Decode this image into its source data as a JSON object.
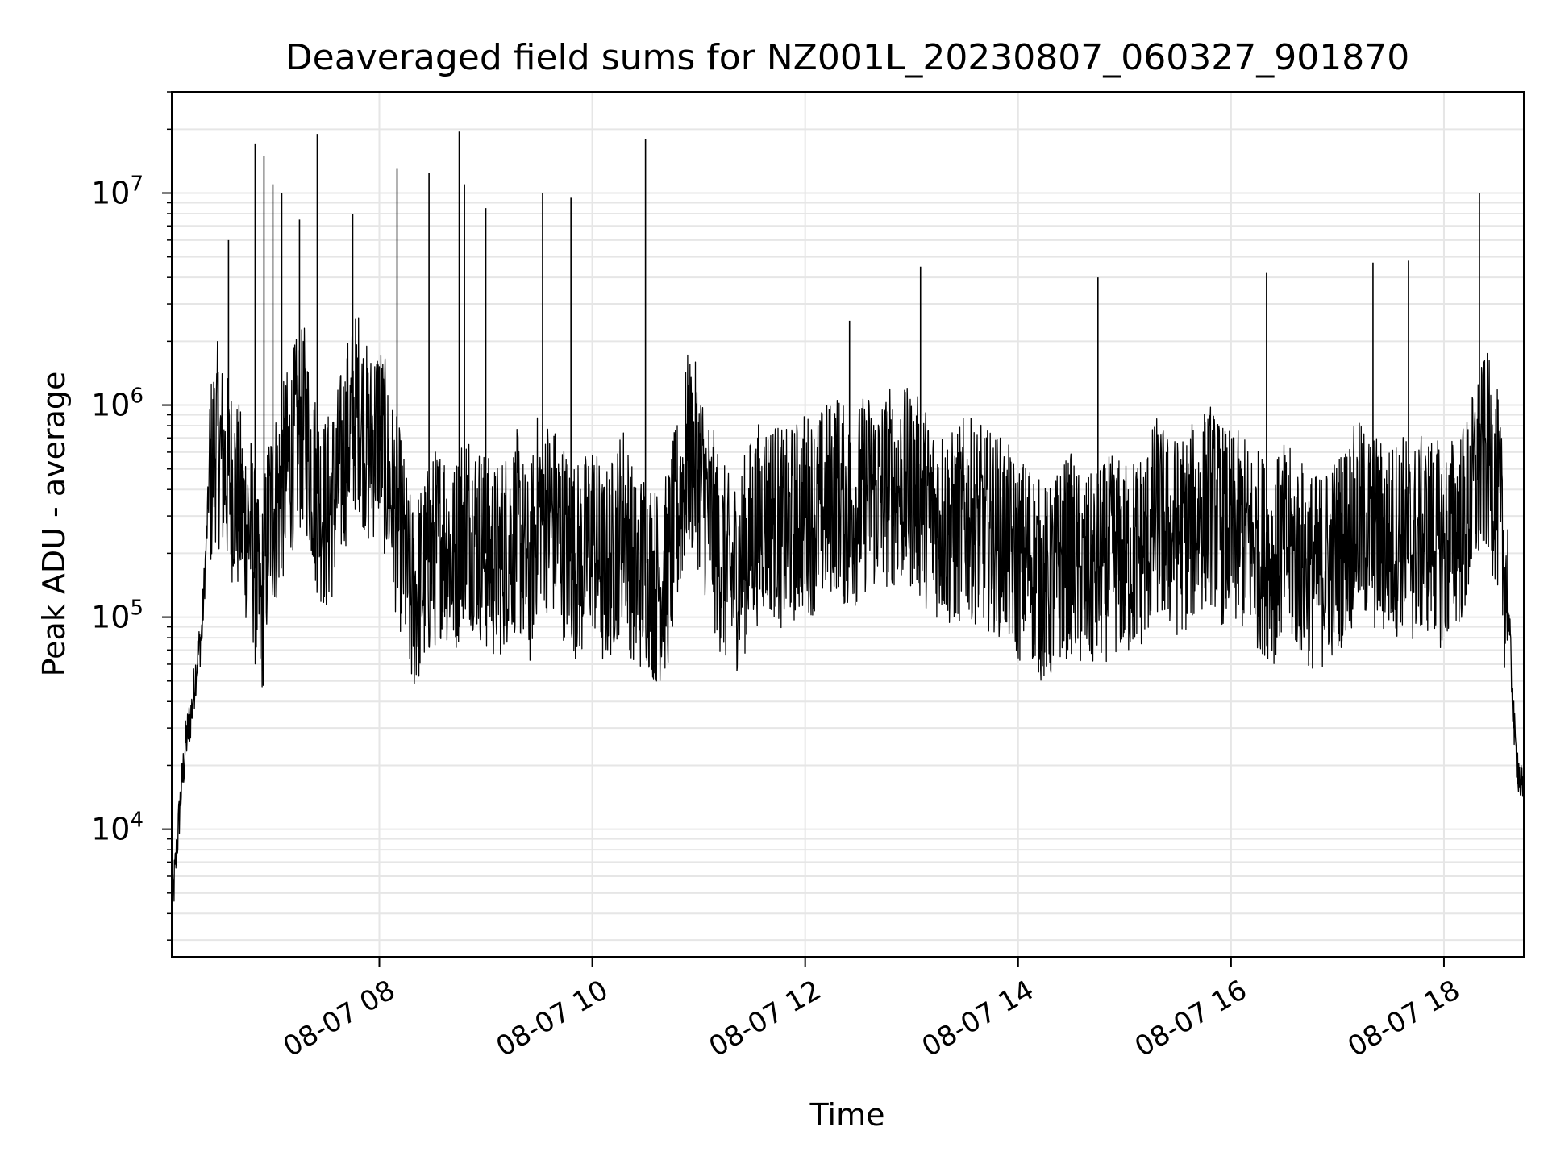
{
  "chart_data": {
    "type": "line",
    "title": "Deaveraged field sums for NZ001L_20230807_060327_901870",
    "xlabel": "Time",
    "ylabel": "Peak ADU - average",
    "x_scale": "time",
    "y_scale": "log",
    "xlim": [
      "2023-08-07 06:03",
      "2023-08-07 18:45"
    ],
    "ylim": [
      2500,
      30000000
    ],
    "grid": true,
    "line_color": "#000000",
    "grid_color": "#e6e6e6",
    "x_ticks": [
      {
        "value": "2023-08-07 08:00",
        "label": "08-07 08"
      },
      {
        "value": "2023-08-07 10:00",
        "label": "08-07 10"
      },
      {
        "value": "2023-08-07 12:00",
        "label": "08-07 12"
      },
      {
        "value": "2023-08-07 14:00",
        "label": "08-07 14"
      },
      {
        "value": "2023-08-07 16:00",
        "label": "08-07 16"
      },
      {
        "value": "2023-08-07 18:00",
        "label": "08-07 18"
      }
    ],
    "y_ticks": [
      {
        "value": 10000,
        "base": "10",
        "exp": "4"
      },
      {
        "value": 100000,
        "base": "10",
        "exp": "5"
      },
      {
        "value": 1000000,
        "base": "10",
        "exp": "6"
      },
      {
        "value": 10000000,
        "base": "10",
        "exp": "7"
      }
    ],
    "series": [
      {
        "x": [
          "2023-08-07 06:03",
          "2023-08-07 06:05",
          "2023-08-07 06:08",
          "2023-08-07 06:11",
          "2023-08-07 06:14",
          "2023-08-07 06:17",
          "2023-08-07 06:20",
          "2023-08-07 06:24",
          "2023-08-07 06:28",
          "2023-08-07 06:33",
          "2023-08-07 06:38",
          "2023-08-07 06:43",
          "2023-08-07 06:48",
          "2023-08-07 06:53",
          "2023-08-07 06:58",
          "2023-08-07 07:03",
          "2023-08-07 07:08",
          "2023-08-07 07:13",
          "2023-08-07 07:18",
          "2023-08-07 07:24",
          "2023-08-07 07:30",
          "2023-08-07 07:36",
          "2023-08-07 07:42",
          "2023-08-07 07:48",
          "2023-08-07 07:54",
          "2023-08-07 08:00",
          "2023-08-07 08:06",
          "2023-08-07 08:12",
          "2023-08-07 08:18",
          "2023-08-07 08:24",
          "2023-08-07 08:30",
          "2023-08-07 08:36",
          "2023-08-07 08:42",
          "2023-08-07 08:48",
          "2023-08-07 08:54",
          "2023-08-07 09:00",
          "2023-08-07 09:06",
          "2023-08-07 09:12",
          "2023-08-07 09:18",
          "2023-08-07 09:24",
          "2023-08-07 09:30",
          "2023-08-07 09:36",
          "2023-08-07 09:42",
          "2023-08-07 09:48",
          "2023-08-07 09:54",
          "2023-08-07 10:00",
          "2023-08-07 10:06",
          "2023-08-07 10:12",
          "2023-08-07 10:18",
          "2023-08-07 10:24",
          "2023-08-07 10:30",
          "2023-08-07 10:36",
          "2023-08-07 10:42",
          "2023-08-07 10:48",
          "2023-08-07 10:54",
          "2023-08-07 11:00",
          "2023-08-07 11:06",
          "2023-08-07 11:12",
          "2023-08-07 11:18",
          "2023-08-07 11:24",
          "2023-08-07 11:30",
          "2023-08-07 11:36",
          "2023-08-07 11:42",
          "2023-08-07 11:48",
          "2023-08-07 11:54",
          "2023-08-07 12:00",
          "2023-08-07 12:06",
          "2023-08-07 12:12",
          "2023-08-07 12:18",
          "2023-08-07 12:24",
          "2023-08-07 12:30",
          "2023-08-07 12:36",
          "2023-08-07 12:42",
          "2023-08-07 12:48",
          "2023-08-07 12:54",
          "2023-08-07 13:00",
          "2023-08-07 13:06",
          "2023-08-07 13:12",
          "2023-08-07 13:18",
          "2023-08-07 13:24",
          "2023-08-07 13:30",
          "2023-08-07 13:36",
          "2023-08-07 13:42",
          "2023-08-07 13:48",
          "2023-08-07 13:54",
          "2023-08-07 14:00",
          "2023-08-07 14:06",
          "2023-08-07 14:12",
          "2023-08-07 14:18",
          "2023-08-07 14:24",
          "2023-08-07 14:30",
          "2023-08-07 14:36",
          "2023-08-07 14:42",
          "2023-08-07 14:48",
          "2023-08-07 14:54",
          "2023-08-07 15:00",
          "2023-08-07 15:06",
          "2023-08-07 15:12",
          "2023-08-07 15:18",
          "2023-08-07 15:24",
          "2023-08-07 15:30",
          "2023-08-07 15:36",
          "2023-08-07 15:42",
          "2023-08-07 15:48",
          "2023-08-07 15:54",
          "2023-08-07 16:00",
          "2023-08-07 16:06",
          "2023-08-07 16:12",
          "2023-08-07 16:18",
          "2023-08-07 16:24",
          "2023-08-07 16:30",
          "2023-08-07 16:36",
          "2023-08-07 16:42",
          "2023-08-07 16:48",
          "2023-08-07 16:54",
          "2023-08-07 17:00",
          "2023-08-07 17:06",
          "2023-08-07 17:12",
          "2023-08-07 17:18",
          "2023-08-07 17:24",
          "2023-08-07 17:30",
          "2023-08-07 17:36",
          "2023-08-07 17:42",
          "2023-08-07 17:48",
          "2023-08-07 17:54",
          "2023-08-07 18:00",
          "2023-08-07 18:06",
          "2023-08-07 18:12",
          "2023-08-07 18:18",
          "2023-08-07 18:24",
          "2023-08-07 18:30",
          "2023-08-07 18:36",
          "2023-08-07 18:40",
          "2023-08-07 18:45"
        ],
        "y": [
          4000,
          6500,
          14000,
          26000,
          35000,
          60000,
          85000,
          400000,
          700000,
          500000,
          420000,
          300000,
          250000,
          95000,
          300000,
          350000,
          500000,
          700000,
          800000,
          400000,
          300000,
          400000,
          700000,
          1000000,
          600000,
          800000,
          400000,
          250000,
          120000,
          150000,
          200000,
          250000,
          180000,
          300000,
          250000,
          200000,
          180000,
          220000,
          260000,
          150000,
          350000,
          300000,
          250000,
          200000,
          180000,
          250000,
          160000,
          200000,
          300000,
          150000,
          180000,
          140000,
          160000,
          300000,
          600000,
          500000,
          300000,
          200000,
          150000,
          180000,
          250000,
          300000,
          300000,
          250000,
          280000,
          320000,
          300000,
          350000,
          400000,
          300000,
          350000,
          400000,
          380000,
          420000,
          400000,
          400000,
          350000,
          300000,
          280000,
          250000,
          300000,
          280000,
          260000,
          250000,
          220000,
          180000,
          200000,
          150000,
          140000,
          180000,
          200000,
          150000,
          160000,
          180000,
          200000,
          180000,
          200000,
          220000,
          300000,
          250000,
          240000,
          260000,
          300000,
          350000,
          280000,
          250000,
          250000,
          220000,
          200000,
          180000,
          220000,
          200000,
          180000,
          160000,
          180000,
          200000,
          250000,
          280000,
          260000,
          240000,
          220000,
          260000,
          220000,
          240000,
          250000,
          200000,
          260000,
          280000,
          450000,
          600000,
          400000,
          120000,
          25000,
          13000
        ],
        "spikes": [
          {
            "x": "2023-08-07 06:35",
            "y": 6000000
          },
          {
            "x": "2023-08-07 06:50",
            "y": 17000000
          },
          {
            "x": "2023-08-07 06:55",
            "y": 15000000
          },
          {
            "x": "2023-08-07 07:00",
            "y": 11000000
          },
          {
            "x": "2023-08-07 07:05",
            "y": 10000000
          },
          {
            "x": "2023-08-07 07:15",
            "y": 7500000
          },
          {
            "x": "2023-08-07 07:25",
            "y": 19000000
          },
          {
            "x": "2023-08-07 07:45",
            "y": 8000000
          },
          {
            "x": "2023-08-07 08:10",
            "y": 13000000
          },
          {
            "x": "2023-08-07 08:28",
            "y": 12500000
          },
          {
            "x": "2023-08-07 08:45",
            "y": 19500000
          },
          {
            "x": "2023-08-07 08:48",
            "y": 11000000
          },
          {
            "x": "2023-08-07 09:00",
            "y": 8500000
          },
          {
            "x": "2023-08-07 09:32",
            "y": 10000000
          },
          {
            "x": "2023-08-07 09:48",
            "y": 9500000
          },
          {
            "x": "2023-08-07 10:30",
            "y": 18000000
          },
          {
            "x": "2023-08-07 12:25",
            "y": 2500000
          },
          {
            "x": "2023-08-07 13:05",
            "y": 4500000
          },
          {
            "x": "2023-08-07 14:45",
            "y": 4000000
          },
          {
            "x": "2023-08-07 16:20",
            "y": 4200000
          },
          {
            "x": "2023-08-07 17:20",
            "y": 4700000
          },
          {
            "x": "2023-08-07 17:40",
            "y": 4800000
          },
          {
            "x": "2023-08-07 18:20",
            "y": 10000000
          }
        ]
      }
    ]
  }
}
